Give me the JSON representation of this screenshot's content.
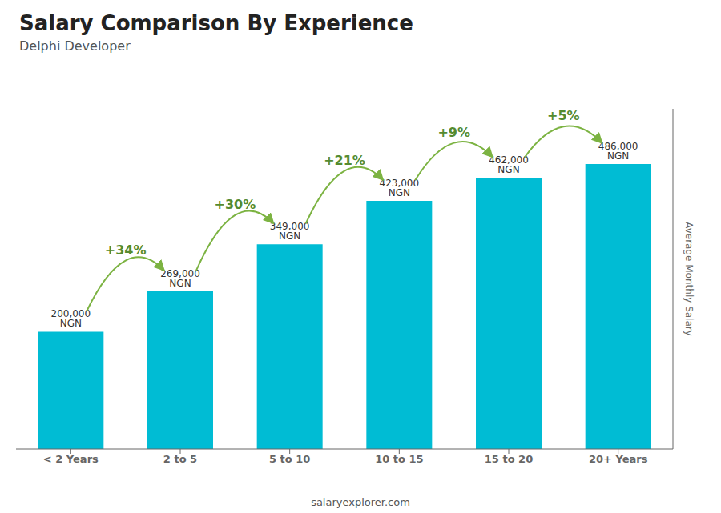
{
  "chart_data": {
    "type": "bar",
    "title": "Salary Comparison By Experience",
    "subtitle": "Delphi Developer",
    "categories": [
      "< 2 Years",
      "2 to 5",
      "5 to 10",
      "10 to 15",
      "15 to 20",
      "20+ Years"
    ],
    "values": [
      200000,
      269000,
      349000,
      423000,
      462000,
      486000
    ],
    "value_labels": [
      "200,000 NGN",
      "269,000 NGN",
      "349,000 NGN",
      "423,000 NGN",
      "462,000 NGN",
      "486,000 NGN"
    ],
    "data_labels": true,
    "color": "#00bcd4",
    "ylabel": "Average Monthly Salary",
    "ylim": [
      0,
      580000
    ],
    "tick_labels": "x",
    "annotations": [
      "+34%",
      "+30%",
      "+21%",
      "+9%",
      "+5%"
    ],
    "footer": "salaryexplorer.com"
  }
}
